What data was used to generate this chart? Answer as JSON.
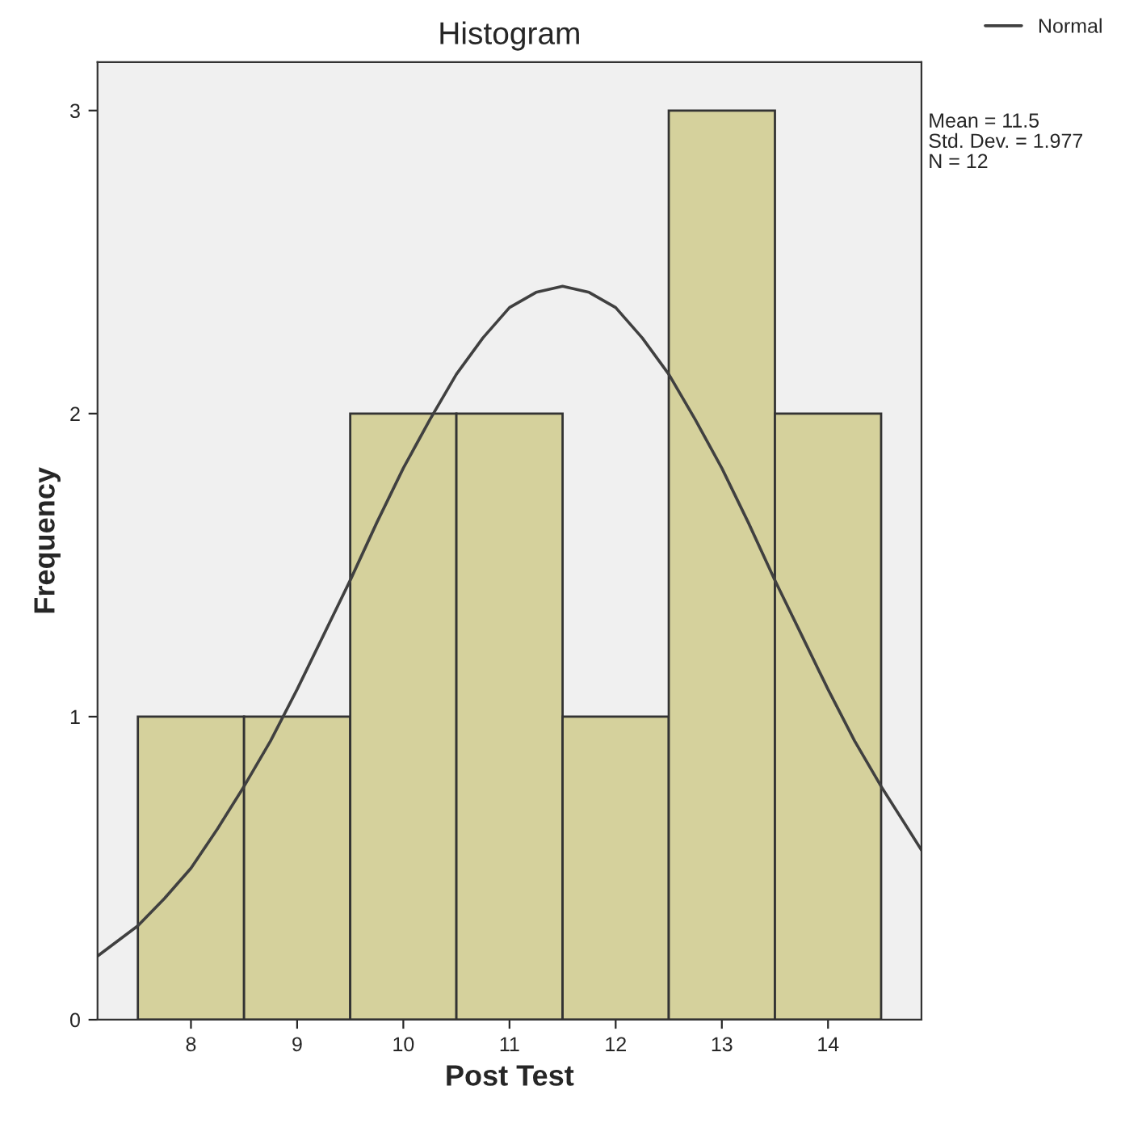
{
  "chart_data": {
    "type": "histogram",
    "title": "Histogram",
    "xlabel": "Post Test",
    "ylabel": "Frequency",
    "bins": [
      7.5,
      8.5,
      9.5,
      10.5,
      11.5,
      12.5,
      13.5,
      14.5
    ],
    "values": [
      1,
      1,
      2,
      2,
      1,
      3,
      2
    ],
    "color": "#d5d19c",
    "series": [
      {
        "name": "Normal",
        "type": "line",
        "color": "#404040",
        "x": [
          7.12,
          7.5,
          7.75,
          8,
          8.25,
          8.5,
          8.75,
          9,
          9.25,
          9.5,
          9.75,
          10,
          10.25,
          10.5,
          10.75,
          11,
          11.25,
          11.5,
          11.75,
          12,
          12.25,
          12.5,
          12.75,
          13,
          13.25,
          13.5,
          13.75,
          14,
          14.25,
          14.5,
          14.88
        ],
        "values": [
          0.21,
          0.31,
          0.4,
          0.5,
          0.63,
          0.77,
          0.92,
          1.09,
          1.27,
          1.45,
          1.64,
          1.82,
          1.98,
          2.13,
          2.25,
          2.35,
          2.4,
          2.42,
          2.4,
          2.35,
          2.25,
          2.13,
          1.98,
          1.82,
          1.64,
          1.45,
          1.27,
          1.09,
          0.92,
          0.77,
          0.56
        ]
      }
    ],
    "xlim": [
      7.12,
      14.88
    ],
    "ylim": [
      0,
      3.16
    ],
    "xticks": [
      8,
      9,
      10,
      11,
      12,
      13,
      14
    ],
    "yticks": [
      0,
      1,
      2,
      3
    ],
    "grid": false,
    "legend": "top right",
    "annotations": [
      "Mean = 11.5",
      "Std. Dev. = 1.977",
      "N = 12"
    ]
  }
}
